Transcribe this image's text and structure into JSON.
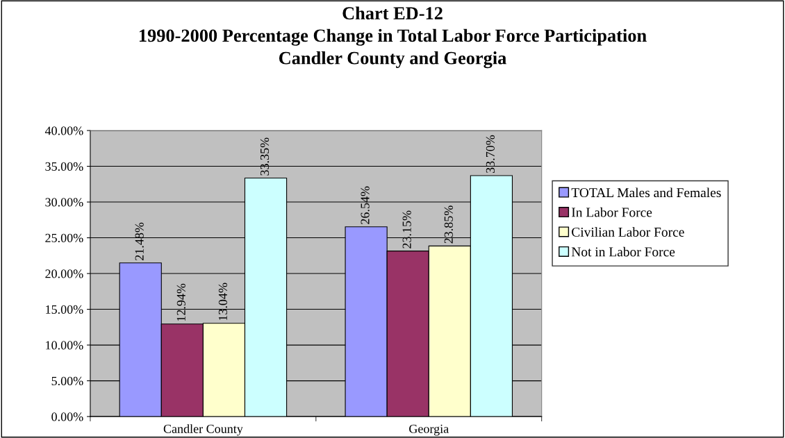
{
  "chart_data": {
    "type": "bar",
    "title": "Chart ED-12\n1990-2000 Percentage Change in Total Labor Force Participation\nCandler County and Georgia",
    "categories": [
      "Candler County",
      "Georgia"
    ],
    "series": [
      {
        "name": "TOTAL Males and Females",
        "color": "#9999ff",
        "values": [
          21.48,
          26.54
        ],
        "value_labels": [
          "21.48%",
          "26.54%"
        ]
      },
      {
        "name": "In Labor Force",
        "color": "#993366",
        "values": [
          12.94,
          23.15
        ],
        "value_labels": [
          "12.94%",
          "23.15%"
        ]
      },
      {
        "name": "Civilian Labor Force",
        "color": "#ffffcc",
        "values": [
          13.04,
          23.85
        ],
        "value_labels": [
          "13.04%",
          "23.85%"
        ]
      },
      {
        "name": "Not in Labor Force",
        "color": "#ccffff",
        "values": [
          33.35,
          33.7
        ],
        "value_labels": [
          "33.35%",
          "33.70%"
        ]
      }
    ],
    "ylim": [
      0,
      40
    ],
    "yticks": [
      {
        "value": 0,
        "label": "0.00%"
      },
      {
        "value": 5,
        "label": "5.00%"
      },
      {
        "value": 10,
        "label": "10.00%"
      },
      {
        "value": 15,
        "label": "15.00%"
      },
      {
        "value": 20,
        "label": "20.00%"
      },
      {
        "value": 25,
        "label": "25.00%"
      },
      {
        "value": 30,
        "label": "30.00%"
      },
      {
        "value": 35,
        "label": "35.00%"
      },
      {
        "value": 40,
        "label": "40.00%"
      }
    ],
    "grid": "y",
    "legend": "right"
  }
}
